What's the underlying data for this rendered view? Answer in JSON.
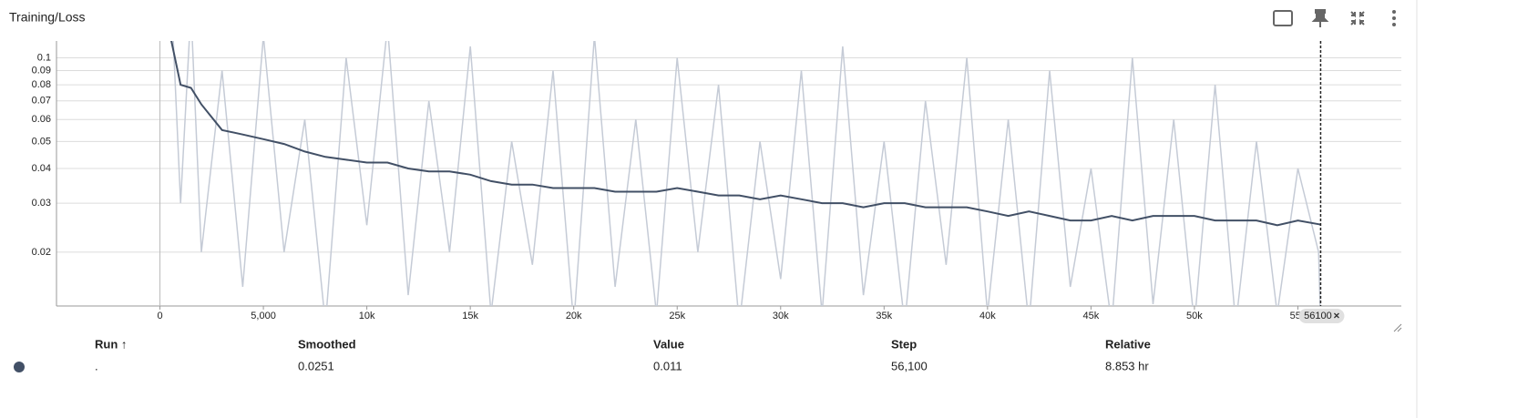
{
  "header": {
    "title": "Training/Loss"
  },
  "chart_data": {
    "type": "line",
    "log_y": true,
    "grid": true,
    "xlim": [
      -5000,
      60000
    ],
    "ylim": [
      0.0128,
      0.115
    ],
    "xticks": [
      0,
      {
        "value": 5000,
        "label": "5,000"
      },
      {
        "value": 10000,
        "label": "10k"
      },
      {
        "value": 15000,
        "label": "15k"
      },
      {
        "value": 20000,
        "label": "20k"
      },
      {
        "value": 25000,
        "label": "25k"
      },
      {
        "value": 30000,
        "label": "30k"
      },
      {
        "value": 35000,
        "label": "35k"
      },
      {
        "value": 40000,
        "label": "40k"
      },
      {
        "value": 45000,
        "label": "45k"
      },
      {
        "value": 50000,
        "label": "50k"
      },
      {
        "value": 55000,
        "label": "55k"
      }
    ],
    "yticks": [
      0.02,
      0.03,
      0.04,
      0.05,
      0.06,
      0.07,
      0.08,
      0.09,
      0.1
    ],
    "cursor_x": 56100,
    "x": [
      500,
      1000,
      1500,
      2000,
      3000,
      4000,
      5000,
      6000,
      7000,
      8000,
      9000,
      10000,
      11000,
      12000,
      13000,
      14000,
      15000,
      16000,
      17000,
      18000,
      19000,
      20000,
      21000,
      22000,
      23000,
      24000,
      25000,
      26000,
      27000,
      28000,
      29000,
      30000,
      31000,
      32000,
      33000,
      34000,
      35000,
      36000,
      37000,
      38000,
      39000,
      40000,
      41000,
      42000,
      43000,
      44000,
      45000,
      46000,
      47000,
      48000,
      49000,
      50000,
      51000,
      52000,
      53000,
      54000,
      55000,
      56000,
      56100
    ],
    "series": [
      {
        "color": "#c5cbd6",
        "values": [
          0.2,
          0.03,
          0.15,
          0.02,
          0.09,
          0.015,
          0.12,
          0.02,
          0.06,
          0.011,
          0.1,
          0.025,
          0.13,
          0.014,
          0.07,
          0.02,
          0.11,
          0.012,
          0.05,
          0.018,
          0.09,
          0.011,
          0.12,
          0.015,
          0.06,
          0.012,
          0.1,
          0.02,
          0.08,
          0.011,
          0.05,
          0.016,
          0.09,
          0.012,
          0.11,
          0.014,
          0.05,
          0.011,
          0.07,
          0.018,
          0.1,
          0.012,
          0.06,
          0.011,
          0.09,
          0.015,
          0.04,
          0.011,
          0.1,
          0.013,
          0.06,
          0.011,
          0.08,
          0.011,
          0.05,
          0.012,
          0.04,
          0.02,
          0.011
        ]
      },
      {
        "color": "#425066",
        "values": [
          0.12,
          0.08,
          0.078,
          0.068,
          0.055,
          0.053,
          0.051,
          0.049,
          0.046,
          0.044,
          0.043,
          0.042,
          0.042,
          0.04,
          0.039,
          0.039,
          0.038,
          0.036,
          0.035,
          0.035,
          0.034,
          0.034,
          0.034,
          0.033,
          0.033,
          0.033,
          0.034,
          0.033,
          0.032,
          0.032,
          0.031,
          0.032,
          0.031,
          0.03,
          0.03,
          0.029,
          0.03,
          0.03,
          0.029,
          0.029,
          0.029,
          0.028,
          0.027,
          0.028,
          0.027,
          0.026,
          0.026,
          0.027,
          0.026,
          0.027,
          0.027,
          0.027,
          0.026,
          0.026,
          0.026,
          0.025,
          0.026,
          0.0252,
          0.0251
        ]
      }
    ]
  },
  "table": {
    "headers": [
      "Run ↑",
      "Smoothed",
      "Value",
      "Step",
      "Relative"
    ],
    "rows": [
      [
        ".",
        "0.0251",
        "0.011",
        "56,100",
        "8.853 hr"
      ]
    ]
  }
}
